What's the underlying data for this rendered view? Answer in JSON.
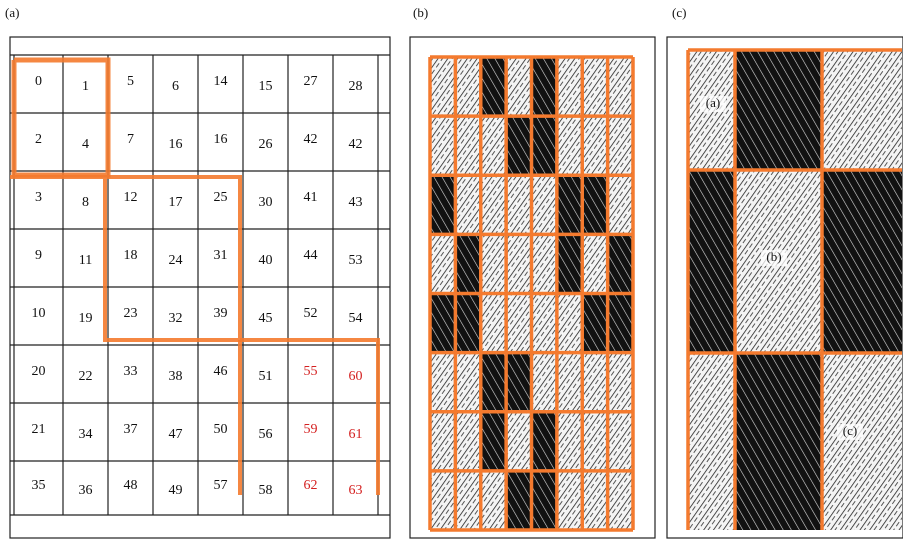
{
  "panels": [
    {
      "label": "(a)",
      "grid": [
        [
          0,
          1,
          5,
          6,
          14,
          15,
          27,
          28
        ],
        [
          2,
          4,
          7,
          16,
          16,
          26,
          42,
          42
        ],
        [
          3,
          8,
          12,
          17,
          25,
          30,
          41,
          43
        ],
        [
          9,
          11,
          18,
          24,
          31,
          40,
          44,
          53
        ],
        [
          10,
          19,
          23,
          32,
          39,
          45,
          52,
          54
        ],
        [
          20,
          22,
          33,
          38,
          46,
          51,
          55,
          60
        ],
        [
          21,
          34,
          37,
          47,
          50,
          56,
          59,
          61
        ],
        [
          35,
          36,
          48,
          49,
          57,
          58,
          62,
          63
        ]
      ]
    },
    {
      "label": "(b)"
    },
    {
      "label": "(c)",
      "regions": [
        "(a)",
        "(b)",
        "(c)"
      ]
    }
  ]
}
